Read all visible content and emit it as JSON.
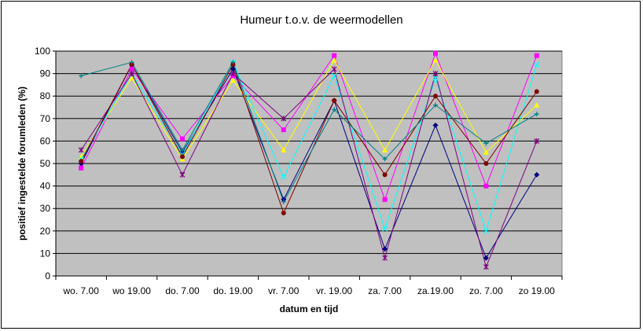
{
  "chart_data": {
    "type": "line",
    "title": "Humeur t.o.v. de weermodellen",
    "xlabel": "datum en tijd",
    "ylabel": "positief ingestelde forumleden (%)",
    "categories": [
      "wo. 7.00",
      "wo 19.00",
      "do. 7.00",
      "do. 19.00",
      "vr. 7.00",
      "vr. 19.00",
      "za. 7.00",
      "za.19.00",
      "zo. 7.00",
      "zo 19.00"
    ],
    "ylim": [
      0,
      100
    ],
    "yticks": [
      "0",
      "10",
      "20",
      "30",
      "40",
      "50",
      "60",
      "70",
      "80",
      "90",
      "100"
    ],
    "grid": true,
    "plot_background": "#c0c0c0",
    "series": [
      {
        "color": "#000080",
        "marker": "diamond",
        "values": [
          50,
          94,
          55,
          92,
          34,
          78,
          12,
          67,
          8,
          45
        ]
      },
      {
        "color": "#ff00ff",
        "marker": "square",
        "values": [
          48,
          92,
          61,
          89,
          65,
          98,
          34,
          99,
          40,
          98
        ]
      },
      {
        "color": "#ffff00",
        "marker": "triangle",
        "values": [
          53,
          88,
          52,
          87,
          56,
          96,
          56,
          96,
          55,
          76
        ]
      },
      {
        "color": "#00ffff",
        "marker": "x",
        "values": [
          52,
          90,
          54,
          95,
          44,
          89,
          21,
          88,
          20,
          94
        ]
      },
      {
        "color": "#800080",
        "marker": "star",
        "values": [
          56,
          90,
          45,
          90,
          70,
          92,
          8,
          90,
          4,
          60
        ]
      },
      {
        "color": "#800000",
        "marker": "circle",
        "values": [
          51,
          94,
          53,
          94,
          28,
          78,
          45,
          80,
          50,
          82
        ]
      },
      {
        "color": "#008080",
        "marker": "plus",
        "values": [
          89,
          95,
          56,
          95,
          33,
          74,
          52,
          76,
          59,
          72
        ]
      }
    ]
  }
}
